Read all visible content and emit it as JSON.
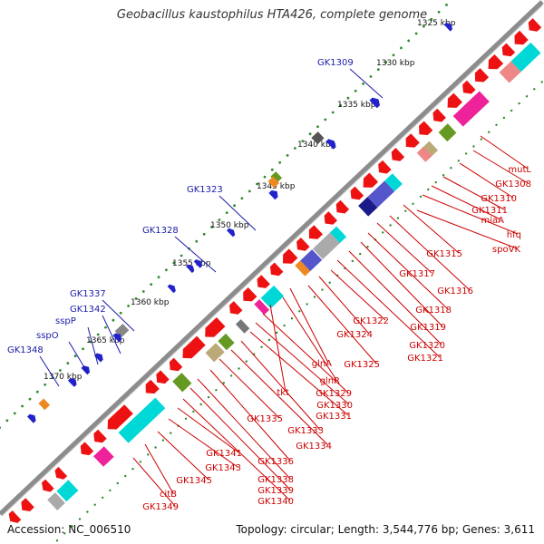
{
  "title": "Geobacillus kaustophilus HTA426, complete genome",
  "footer": {
    "accession": "Accession: NC_006510",
    "summary": "Topology: circular; Length: 3,544,776 bp; Genes: 3,611"
  },
  "colors": {
    "backbone": "#8c8c8c",
    "tick_dots": "#2e8b2e",
    "label_blue": "#1a1aa8",
    "label_red": "#cc0000",
    "cds_red": "#ee1111",
    "rrna_cyan": "#00d8d8",
    "magenta": "#ee2299",
    "violet": "#5555cc",
    "olive": "#669922",
    "tan": "#bbaa77",
    "gray": "#777777",
    "pink": "#ee8888",
    "orange": "#ee8822"
  },
  "scale_ticks": [
    "1325 kbp",
    "1330 kbp",
    "1335 kbp",
    "1340 kbp",
    "1345 kbp",
    "1350 kbp",
    "1355 kbp",
    "1360 kbp",
    "1365 kbp",
    "1370 kbp"
  ],
  "labels_blue": [
    "GK1309",
    "GK1323",
    "GK1328",
    "GK1337",
    "GK1342",
    "sspP",
    "sspO",
    "GK1348"
  ],
  "labels_red": [
    "mutL",
    "GK1308",
    "GK1310",
    "GK1311",
    "miaA",
    "hfq",
    "GK1315",
    "spoVK",
    "GK1316",
    "GK1317",
    "GK1318",
    "GK1319",
    "GK1320",
    "GK1321",
    "GK1322",
    "GK1324",
    "GK1325",
    "glnA",
    "glnR",
    "tkt",
    "GK1329",
    "GK1330",
    "GK1331",
    "GK1333",
    "GK1334",
    "GK1335",
    "GK1336",
    "GK1338",
    "GK1339",
    "GK1340",
    "GK1341",
    "GK1343",
    "GK1345",
    "citB",
    "GK1349"
  ]
}
